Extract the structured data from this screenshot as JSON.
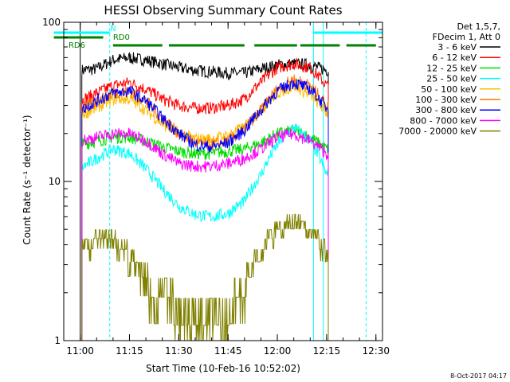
{
  "chart_data": {
    "type": "line",
    "title": "HESSI Observing Summary Count Rates",
    "xlabel": "Start Time (10-Feb-16 10:52:02)",
    "ylabel": "Count Rate (s⁻¹ detector⁻¹)",
    "y_scale": "log",
    "ylim": [
      1,
      100
    ],
    "xlim": [
      "10:55",
      "12:32"
    ],
    "x_ticks": [
      "11:00",
      "11:15",
      "11:30",
      "11:45",
      "12:00",
      "12:15",
      "12:30"
    ],
    "y_ticks": [
      "1",
      "10",
      "100"
    ],
    "legend_header": [
      "Det 1,5,7,",
      "FDecim 1, Att 0"
    ],
    "legend_position": "top-right, outside plot",
    "series": [
      {
        "name": "3 - 6 keV",
        "color": "#000000",
        "x": [
          "11:00",
          "11:05",
          "11:10",
          "11:15",
          "11:20",
          "11:25",
          "11:30",
          "11:35",
          "11:40",
          "11:45",
          "11:50",
          "11:55",
          "12:00",
          "12:05",
          "12:10",
          "12:15"
        ],
        "values": [
          50,
          51,
          58,
          60,
          58,
          55,
          52,
          50,
          49,
          48,
          48,
          51,
          54,
          55,
          54,
          50
        ]
      },
      {
        "name": "6 - 12 keV",
        "color": "#ff0000",
        "x": [
          "11:00",
          "11:05",
          "11:10",
          "11:15",
          "11:20",
          "11:25",
          "11:30",
          "11:35",
          "11:40",
          "11:45",
          "11:50",
          "11:55",
          "12:00",
          "12:05",
          "12:10",
          "12:15"
        ],
        "values": [
          32,
          36,
          40,
          42,
          38,
          33,
          30,
          29,
          29,
          30,
          33,
          42,
          52,
          55,
          52,
          40
        ]
      },
      {
        "name": "12 - 25 keV",
        "color": "#00dd00",
        "x": [
          "11:00",
          "11:05",
          "11:10",
          "11:15",
          "11:20",
          "11:25",
          "11:30",
          "11:35",
          "11:40",
          "11:45",
          "11:50",
          "11:55",
          "12:00",
          "12:05",
          "12:10",
          "12:15"
        ],
        "values": [
          17,
          18,
          19,
          19,
          18,
          16.5,
          15.5,
          15,
          15,
          15.5,
          16,
          17.5,
          20,
          21,
          19,
          16
        ]
      },
      {
        "name": "25 - 50 keV",
        "color": "#00ffff",
        "x": [
          "11:00",
          "11:05",
          "11:10",
          "11:15",
          "11:20",
          "11:25",
          "11:30",
          "11:35",
          "11:40",
          "11:45",
          "11:50",
          "11:55",
          "12:00",
          "12:05",
          "12:10",
          "12:15"
        ],
        "values": [
          12,
          14,
          16,
          15,
          12,
          9,
          7,
          6.2,
          6,
          6.3,
          7.5,
          11,
          17,
          22,
          18,
          11
        ]
      },
      {
        "name": "50 - 100 keV",
        "color": "#ffbb00",
        "x": [
          "11:00",
          "11:05",
          "11:10",
          "11:15",
          "11:20",
          "11:25",
          "11:30",
          "11:35",
          "11:40",
          "11:45",
          "11:50",
          "11:55",
          "12:00",
          "12:05",
          "12:10",
          "12:15"
        ],
        "values": [
          26,
          29,
          33,
          33,
          28,
          23,
          20,
          18.5,
          18.5,
          19.5,
          22,
          28,
          36,
          40,
          35,
          27
        ]
      },
      {
        "name": "100 - 300 keV",
        "color": "#ff7700",
        "x": [
          "11:00",
          "11:05",
          "11:10",
          "11:15",
          "11:20",
          "11:25",
          "11:30",
          "11:35",
          "11:40",
          "11:45",
          "11:50",
          "11:55",
          "12:00",
          "12:05",
          "12:10",
          "12:15"
        ],
        "values": [
          28,
          32,
          36,
          37,
          32,
          25,
          20,
          17.5,
          17,
          18,
          21,
          28,
          38,
          44,
          40,
          30
        ]
      },
      {
        "name": "300 - 800 keV",
        "color": "#0000ff",
        "x": [
          "11:00",
          "11:05",
          "11:10",
          "11:15",
          "11:20",
          "11:25",
          "11:30",
          "11:35",
          "11:40",
          "11:45",
          "11:50",
          "11:55",
          "12:00",
          "12:05",
          "12:10",
          "12:15"
        ],
        "values": [
          28,
          32,
          36,
          37,
          32,
          25,
          20,
          17,
          16.5,
          17.5,
          21,
          28,
          37,
          42,
          38,
          29
        ]
      },
      {
        "name": "800 - 7000 keV",
        "color": "#ff00ff",
        "x": [
          "11:00",
          "11:05",
          "11:10",
          "11:15",
          "11:20",
          "11:25",
          "11:30",
          "11:35",
          "11:40",
          "11:45",
          "11:50",
          "11:55",
          "12:00",
          "12:05",
          "12:10",
          "12:15"
        ],
        "values": [
          18,
          19,
          20,
          20,
          18,
          15,
          13,
          12.5,
          12.5,
          13,
          14,
          16,
          19,
          20,
          18,
          15
        ]
      },
      {
        "name": "7000 - 20000 keV",
        "color": "#808000",
        "x": [
          "11:00",
          "11:05",
          "11:10",
          "11:15",
          "11:20",
          "11:25",
          "11:30",
          "11:35",
          "11:40",
          "11:45",
          "11:50",
          "11:55",
          "12:00",
          "12:05",
          "12:10",
          "12:15"
        ],
        "values": [
          3.5,
          4.3,
          4.3,
          3.3,
          2.3,
          1.7,
          1.5,
          1.4,
          1.4,
          1.5,
          2,
          3.5,
          5,
          5.8,
          5,
          3.3
        ]
      }
    ],
    "annotations": {
      "status_bars": [
        {
          "label": "N",
          "color": "#00ffff",
          "spans": [
            [
              "10:52",
              "11:09"
            ],
            [
              "12:11",
              "12:32"
            ]
          ]
        },
        {
          "label": "RD0",
          "color": "#008000",
          "spans": [
            [
              "10:52",
              "11:07"
            ]
          ]
        },
        {
          "label": "RD6",
          "color": "#008000",
          "spans": [
            [
              "11:10",
              "11:25"
            ],
            [
              "11:27",
              "11:50"
            ],
            [
              "11:53",
              "12:06"
            ],
            [
              "12:07",
              "12:19"
            ],
            [
              "12:21",
              "12:30"
            ]
          ]
        }
      ],
      "vertical_lines": [
        {
          "x": "11:00",
          "color": "#000000",
          "style": "solid"
        },
        {
          "x": "11:09",
          "color": "#00ffff",
          "style": "dashed"
        },
        {
          "x": "12:11",
          "color": "#00ffff",
          "style": "solid"
        },
        {
          "x": "12:14",
          "color": "#00ffff",
          "style": "solid"
        },
        {
          "x": "12:27",
          "color": "#00ffff",
          "style": "dashed"
        }
      ]
    },
    "footer_date": "8-Oct-2017 04:17"
  }
}
